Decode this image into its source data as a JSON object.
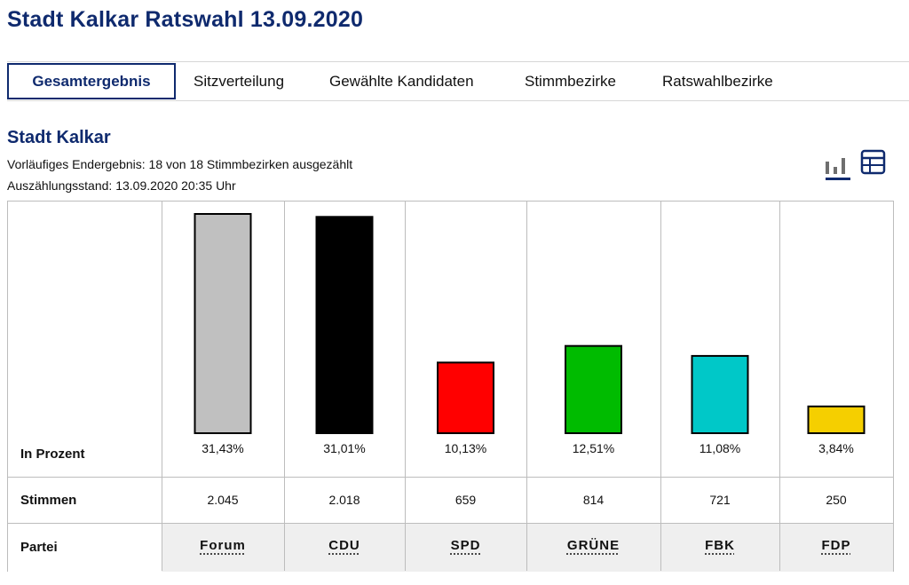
{
  "page": {
    "title": "Stadt Kalkar Ratswahl 13.09.2020"
  },
  "tabs": [
    {
      "label": "Gesamtergebnis",
      "active": true
    },
    {
      "label": "Sitzverteilung",
      "active": false
    },
    {
      "label": "Gewählte Kandidaten",
      "active": false
    },
    {
      "label": "Stimmbezirke",
      "active": false
    },
    {
      "label": "Ratswahlbezirke",
      "active": false
    }
  ],
  "section": {
    "title": "Stadt Kalkar",
    "status": "Vorläufiges Endergebnis: 18 von 18 Stimmbezirken ausgezählt",
    "count_time": "Auszählungsstand: 13.09.2020 20:35 Uhr"
  },
  "view_icons": {
    "chart": "bar-chart-icon",
    "table": "table-icon",
    "selected": "chart"
  },
  "table": {
    "row_labels": {
      "percent": "In Prozent",
      "votes": "Stimmen",
      "party": "Partei"
    }
  },
  "chart_data": {
    "type": "bar",
    "categories": [
      "Forum",
      "CDU",
      "SPD",
      "GRÜNE",
      "FBK",
      "FDP"
    ],
    "values": [
      31.43,
      31.01,
      10.13,
      12.51,
      11.08,
      3.84
    ],
    "value_labels": [
      "31,43%",
      "31,01%",
      "10,13%",
      "12,51%",
      "11,08%",
      "3,84%"
    ],
    "votes": [
      "2.045",
      "2.018",
      "659",
      "814",
      "721",
      "250"
    ],
    "colors": [
      "#c0c0c0",
      "#000000",
      "#ff0000",
      "#00bb00",
      "#00c8c8",
      "#f5cf00"
    ],
    "ylim": [
      0,
      31.43
    ],
    "grid": false
  }
}
